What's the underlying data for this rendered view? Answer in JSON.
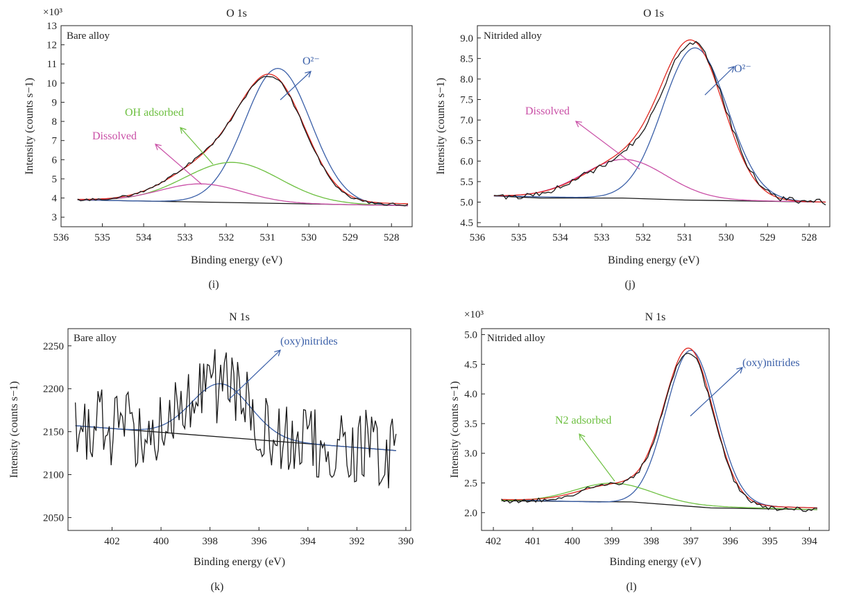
{
  "colors": {
    "black": "#1a1a1a",
    "red": "#e0271f",
    "blue": "#3a5fa8",
    "green": "#6cbf3f",
    "magenta": "#c94fa6",
    "axis": "#222222"
  },
  "chart_data": [
    {
      "panel": "(i)",
      "type": "line",
      "title": "O 1s",
      "inset_label": "Bare alloy",
      "xlabel": "Binding energy (eV)",
      "ylabel": "Intensity (counts s−1)",
      "y_multiplier": "×10³",
      "xlim": [
        536,
        527.5
      ],
      "ylim": [
        2.5,
        13
      ],
      "x_ticks": [
        536,
        535,
        534,
        533,
        532,
        531,
        530,
        529,
        528
      ],
      "y_ticks": [
        3,
        4,
        5,
        6,
        7,
        8,
        9,
        10,
        11,
        12,
        13
      ],
      "annotations": [
        {
          "text": "O²⁻",
          "color": "blue"
        },
        {
          "text": "OH adsorbed",
          "color": "green"
        },
        {
          "text": "Dissolved",
          "color": "magenta"
        }
      ],
      "series": [
        {
          "role": "data",
          "color": "black",
          "peaks": [
            [
              530.85,
              5.5,
              0.78
            ],
            [
              531.85,
              1.45,
              1.1
            ],
            [
              532.7,
              0.9,
              0.9
            ]
          ],
          "baseline": [
            535.6,
            3.9,
            527.6,
            3.65
          ],
          "noise": 0.07
        },
        {
          "role": "fit",
          "color": "red",
          "peaks": [
            [
              530.85,
              5.5,
              0.78
            ],
            [
              531.85,
              1.55,
              1.1
            ],
            [
              532.7,
              0.75,
              0.9
            ]
          ],
          "baseline": [
            535.6,
            3.92,
            527.6,
            3.7
          ]
        },
        {
          "name": "O²⁻",
          "color": "blue",
          "peaks": [
            [
              530.75,
              7.05,
              0.8
            ]
          ],
          "baseline": [
            535.6,
            3.9,
            527.6,
            3.6
          ]
        },
        {
          "name": "OH adsorbed",
          "color": "green",
          "peaks": [
            [
              531.85,
              2.1,
              1.15
            ]
          ],
          "baseline": [
            535.6,
            3.9,
            527.6,
            3.6
          ]
        },
        {
          "name": "Dissolved",
          "color": "magenta",
          "peaks": [
            [
              532.6,
              0.95,
              1.0
            ]
          ],
          "baseline": [
            535.6,
            3.9,
            527.6,
            3.6
          ]
        },
        {
          "role": "background",
          "color": "black",
          "points": [
            [
              535.6,
              3.9
            ],
            [
              527.6,
              3.6
            ]
          ]
        }
      ]
    },
    {
      "panel": "(j)",
      "type": "line",
      "title": "O 1s",
      "inset_label": "Nitrided alloy",
      "xlabel": "Binding energy (eV)",
      "ylabel": "Intensity (counts s−1)",
      "xlim": [
        536,
        527.5
      ],
      "ylim": [
        4.4,
        9.3
      ],
      "x_ticks": [
        536,
        535,
        534,
        533,
        532,
        531,
        530,
        529,
        528
      ],
      "y_ticks": [
        4.5,
        5.0,
        5.5,
        6.0,
        6.5,
        7.0,
        7.5,
        8.0,
        8.5,
        9.0
      ],
      "annotations": [
        {
          "text": "O²⁻",
          "color": "blue"
        },
        {
          "text": "Dissolved",
          "color": "magenta"
        }
      ],
      "series": [
        {
          "role": "data",
          "color": "black",
          "peaks": [
            [
              530.75,
              3.6,
              0.75
            ],
            [
              532.45,
              0.9,
              1.0
            ]
          ],
          "baseline": [
            535.6,
            5.12,
            527.6,
            5.0
          ],
          "noise": 0.07
        },
        {
          "role": "fit",
          "color": "red",
          "peaks": [
            [
              530.8,
              3.65,
              0.75
            ],
            [
              532.45,
              0.9,
              1.0
            ]
          ],
          "baseline": [
            535.6,
            5.15,
            527.6,
            5.0
          ]
        },
        {
          "name": "O²⁻",
          "color": "blue",
          "peaks": [
            [
              530.75,
              3.7,
              0.78
            ]
          ],
          "baseline": [
            535.6,
            5.15,
            527.6,
            5.0
          ]
        },
        {
          "name": "Dissolved",
          "color": "magenta",
          "peaks": [
            [
              532.45,
              0.95,
              1.0
            ]
          ],
          "baseline": [
            535.6,
            5.15,
            527.6,
            5.0
          ]
        },
        {
          "role": "background",
          "color": "black",
          "points": [
            [
              535.6,
              5.15
            ],
            [
              534.5,
              5.1
            ],
            [
              532.5,
              5.1
            ],
            [
              531.0,
              5.05
            ],
            [
              527.6,
              5.0
            ]
          ]
        }
      ]
    },
    {
      "panel": "(k)",
      "type": "line",
      "title": "N 1s",
      "inset_label": "Bare alloy",
      "xlabel": "Binding energy (eV)",
      "ylabel": "Intensity (counts s−1)",
      "xlim": [
        403.8,
        389.8
      ],
      "ylim": [
        2035,
        2270
      ],
      "x_ticks": [
        402,
        400,
        398,
        396,
        394,
        392,
        390
      ],
      "y_ticks": [
        2050,
        2100,
        2150,
        2200,
        2250
      ],
      "annotations": [
        {
          "text": "(oxy)nitrides",
          "color": "blue"
        }
      ],
      "series": [
        {
          "role": "data",
          "color": "black",
          "peaks": [
            [
              397.6,
              60,
              1.2
            ]
          ],
          "baseline": [
            403.5,
            2157,
            390.4,
            2128
          ],
          "noise": 45
        },
        {
          "name": "(oxy)nitrides",
          "color": "blue",
          "peaks": [
            [
              397.55,
              62,
              1.2
            ]
          ],
          "baseline": [
            403.5,
            2157,
            390.4,
            2128
          ]
        },
        {
          "role": "background",
          "color": "black",
          "points": [
            [
              403.5,
              2157
            ],
            [
              390.4,
              2128
            ]
          ]
        }
      ]
    },
    {
      "panel": "(l)",
      "type": "line",
      "title": "N 1s",
      "inset_label": "Nitrided alloy",
      "xlabel": "Binding energy (eV)",
      "ylabel": "Intensity (counts s−1)",
      "y_multiplier": "×10³",
      "xlim": [
        402.3,
        393.5
      ],
      "ylim": [
        1.7,
        5.1
      ],
      "x_ticks": [
        402,
        401,
        400,
        399,
        398,
        397,
        396,
        395,
        394
      ],
      "y_ticks": [
        2.0,
        2.5,
        3.0,
        3.5,
        4.0,
        4.5,
        5.0
      ],
      "annotations": [
        {
          "text": "(oxy)nitrides",
          "color": "blue"
        },
        {
          "text": "N2 adsorbed",
          "color": "green"
        }
      ],
      "series": [
        {
          "role": "data",
          "color": "black",
          "peaks": [
            [
              397.05,
              2.55,
              0.62
            ],
            [
              398.9,
              0.32,
              0.9
            ]
          ],
          "baseline": [
            401.8,
            2.2,
            393.8,
            2.05
          ],
          "noise": 0.04
        },
        {
          "role": "fit",
          "color": "red",
          "peaks": [
            [
              397.05,
              2.6,
              0.62
            ],
            [
              398.9,
              0.3,
              0.9
            ]
          ],
          "baseline": [
            401.8,
            2.22,
            393.8,
            2.08
          ]
        },
        {
          "name": "(oxy)nitrides",
          "color": "blue",
          "peaks": [
            [
              397.0,
              2.6,
              0.63
            ]
          ],
          "baseline": [
            401.8,
            2.22,
            393.8,
            2.08
          ]
        },
        {
          "name": "N2 adsorbed",
          "color": "green",
          "peaks": [
            [
              398.95,
              0.35,
              1.0
            ]
          ],
          "baseline": [
            401.8,
            2.2,
            393.8,
            2.05
          ]
        },
        {
          "role": "background",
          "color": "black",
          "points": [
            [
              401.8,
              2.2
            ],
            [
              398.5,
              2.18
            ],
            [
              396.5,
              2.08
            ],
            [
              393.8,
              2.05
            ]
          ]
        }
      ]
    }
  ]
}
